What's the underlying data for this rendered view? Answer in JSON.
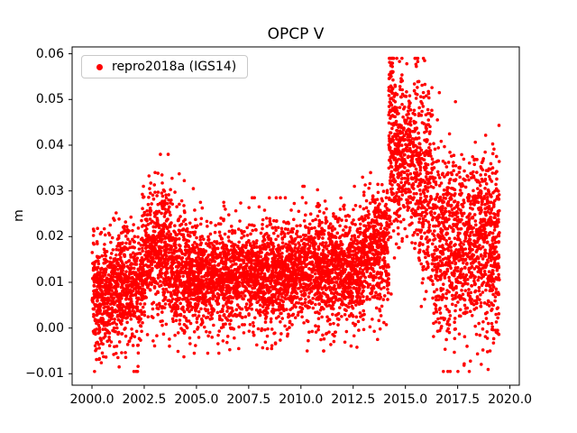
{
  "figure": {
    "background": "#ffffff"
  },
  "chart_data": {
    "type": "scatter",
    "title": "OPCP V",
    "xlabel": "",
    "ylabel": "m",
    "grid": false,
    "legend": {
      "position": "upper left",
      "entries": [
        "repro2018a (IGS14)"
      ]
    },
    "xlim": [
      1999.05,
      2020.45
    ],
    "ylim": [
      -0.0125,
      0.0615
    ],
    "xticks": [
      2000.0,
      2002.5,
      2005.0,
      2007.5,
      2010.0,
      2012.5,
      2015.0,
      2017.5,
      2020.0
    ],
    "xtick_labels": [
      "2000.0",
      "2002.5",
      "2005.0",
      "2007.5",
      "2010.0",
      "2012.5",
      "2015.0",
      "2017.5",
      "2020.0"
    ],
    "yticks": [
      -0.01,
      0.0,
      0.01,
      0.02,
      0.03,
      0.04,
      0.05,
      0.06
    ],
    "ytick_labels": [
      "−0.01",
      "0.00",
      "0.01",
      "0.02",
      "0.03",
      "0.04",
      "0.05",
      "0.06"
    ],
    "spine_color": "#000000",
    "series": [
      {
        "name": "repro2018a (IGS14)",
        "color": "#ff0000",
        "marker": "point",
        "marker_radius_px": 1.8,
        "sampling": "daily",
        "value_unit": "m",
        "seed": 20180101,
        "clip": [
          -0.0095,
          0.059
        ],
        "segments": [
          {
            "t0": 2000.0,
            "t1": 2001.0,
            "mean": 0.007,
            "std": 0.0065,
            "n": 360
          },
          {
            "t0": 2001.0,
            "t1": 2002.4,
            "mean": 0.009,
            "std": 0.0065,
            "n": 500
          },
          {
            "t0": 2002.4,
            "t1": 2003.7,
            "mean": 0.017,
            "std": 0.007,
            "n": 470
          },
          {
            "t0": 2003.7,
            "t1": 2004.5,
            "mean": 0.013,
            "std": 0.0075,
            "n": 290
          },
          {
            "t0": 2004.5,
            "t1": 2007.0,
            "mean": 0.011,
            "std": 0.0055,
            "n": 900
          },
          {
            "t0": 2007.0,
            "t1": 2010.0,
            "mean": 0.012,
            "std": 0.0055,
            "n": 1080
          },
          {
            "t0": 2010.0,
            "t1": 2013.0,
            "mean": 0.013,
            "std": 0.006,
            "n": 1080
          },
          {
            "t0": 2013.0,
            "t1": 2014.2,
            "mean": 0.017,
            "std": 0.0065,
            "n": 430
          },
          {
            "t0": 2014.2,
            "t1": 2014.45,
            "mean": 0.04,
            "std": 0.011,
            "n": 130
          },
          {
            "t0": 2014.45,
            "t1": 2015.6,
            "mean": 0.037,
            "std": 0.009,
            "n": 420
          },
          {
            "t0": 2015.6,
            "t1": 2016.3,
            "mean": 0.031,
            "std": 0.012,
            "n": 250
          },
          {
            "t0": 2016.3,
            "t1": 2017.5,
            "mean": 0.019,
            "std": 0.011,
            "n": 430
          },
          {
            "t0": 2017.5,
            "t1": 2019.5,
            "mean": 0.018,
            "std": 0.01,
            "n": 730
          }
        ],
        "outliers": [
          [
            2003.35,
            0.0335
          ],
          [
            2004.85,
            0.0305
          ],
          [
            2012.95,
            0.033
          ],
          [
            2014.3,
            0.056
          ],
          [
            2014.33,
            0.058
          ],
          [
            2015.92,
            0.0585
          ],
          [
            2019.05,
            -0.005
          ],
          [
            2001.3,
            -0.0085
          ]
        ]
      }
    ]
  }
}
